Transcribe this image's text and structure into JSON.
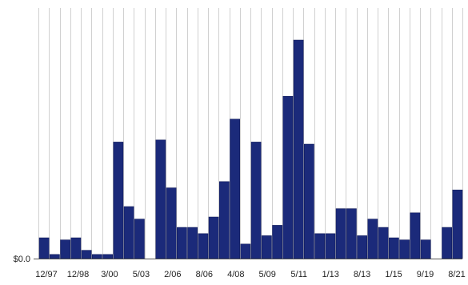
{
  "chart_data": {
    "type": "bar",
    "title": "",
    "xlabel": "",
    "ylabel": "",
    "y_axis_labels": [
      {
        "value": 0,
        "label": "$0.0"
      }
    ],
    "ylim": [
      0,
      100
    ],
    "grid": "vertical",
    "colors": {
      "bar": "#1b2a7a",
      "bar_edge": "#0e1855",
      "grid": "#d0d0d0",
      "baseline": "#555555"
    },
    "x_tick_labels": [
      "12/97",
      "12/98",
      "3/00",
      "5/03",
      "2/06",
      "8/06",
      "4/08",
      "5/09",
      "5/11",
      "1/13",
      "8/13",
      "1/15",
      "9/19",
      "8/21"
    ],
    "values": [
      10,
      2,
      9,
      10,
      4,
      2,
      2,
      56,
      25,
      19,
      0,
      57,
      34,
      15,
      15,
      12,
      20,
      37,
      67,
      7,
      56,
      11,
      16,
      78,
      105,
      55,
      12,
      12,
      24,
      24,
      11,
      19,
      15,
      10,
      9,
      22,
      9,
      0,
      15,
      33
    ]
  }
}
